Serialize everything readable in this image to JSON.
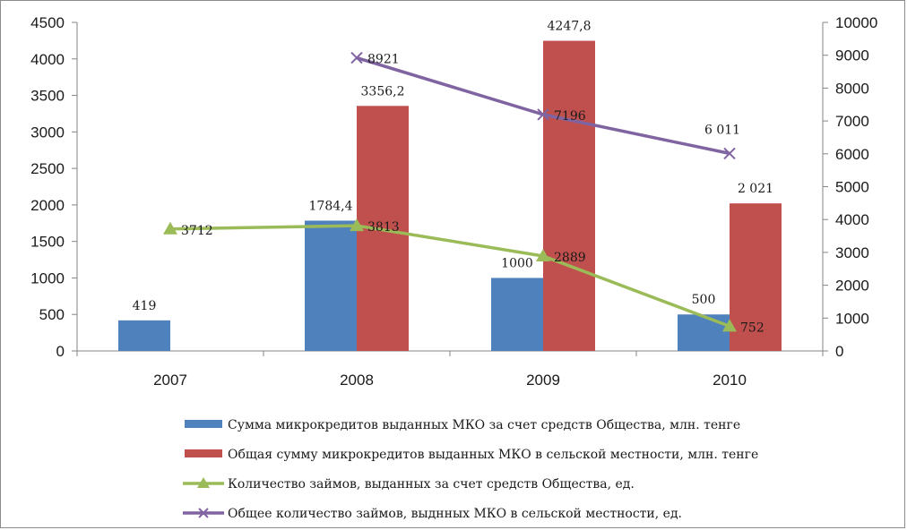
{
  "chart_data": {
    "type": "bar",
    "categories": [
      "2007",
      "2008",
      "2009",
      "2010"
    ],
    "y_left": {
      "min": 0,
      "max": 4500,
      "step": 500
    },
    "y_right": {
      "min": 0,
      "max": 10000,
      "step": 1000
    },
    "grid": false,
    "legend_position": "bottom",
    "series": [
      {
        "name": "Сумма микрокредитов выданных МКО за счет средств Общества, млн. тенге",
        "kind": "bar",
        "axis": "left",
        "color": "#4f81bd",
        "values": [
          419,
          1784.4,
          1000,
          500
        ],
        "labels": [
          "419",
          "1784,4",
          "1000",
          "500"
        ]
      },
      {
        "name": "Общая сумму микрокредитов выданных МКО в сельской местности, млн. тенге",
        "kind": "bar",
        "axis": "left",
        "color": "#c0504d",
        "values": [
          null,
          3356.2,
          4247.8,
          2021
        ],
        "labels": [
          "",
          "3356,2",
          "4247,8",
          "2 021"
        ]
      },
      {
        "name": "Количество займов, выданных за счет средств Общества, ед.",
        "kind": "line",
        "marker": "triangle",
        "axis": "right",
        "color": "#9bbb59",
        "values": [
          3712,
          3813,
          2889,
          752
        ],
        "labels": [
          "3712",
          "3813",
          "2889",
          "752"
        ]
      },
      {
        "name": "Общее количество займов, выднных МКО в сельской местности, ед.",
        "kind": "line",
        "marker": "x",
        "axis": "right",
        "color": "#8064a2",
        "values": [
          null,
          8921,
          7196,
          6011
        ],
        "labels": [
          "",
          "8921",
          "7196",
          "6 011"
        ]
      }
    ]
  }
}
